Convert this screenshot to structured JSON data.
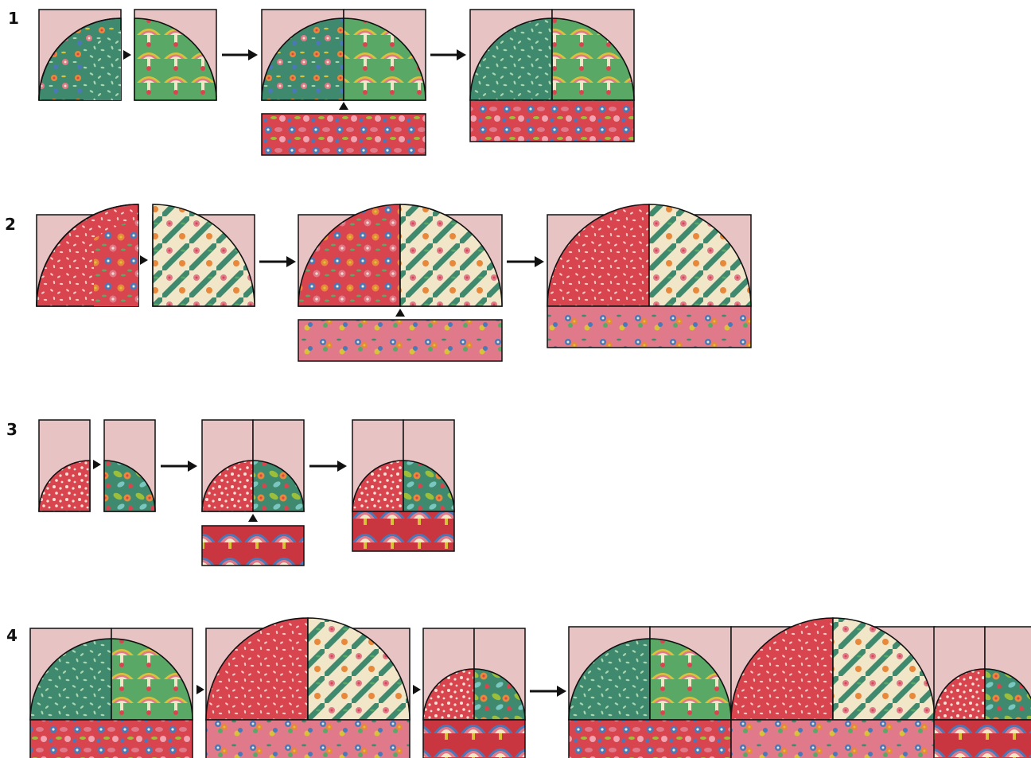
{
  "steps": [
    {
      "number": "1"
    },
    {
      "number": "2"
    },
    {
      "number": "3"
    },
    {
      "number": "4"
    }
  ],
  "colors": {
    "background_pink": "#e8c3c4",
    "outline": "#111111",
    "arrow": "#111111",
    "fabric_teal": "#3f8a6e",
    "fabric_green": "#5aa866",
    "fabric_red": "#d9454f",
    "fabric_cream": "#f1e6c8",
    "fabric_pink": "#e07a8a",
    "fabric_blue": "#4a78b8",
    "fabric_orange": "#e8883a",
    "fabric_yellow": "#d9c23a"
  },
  "icons": [
    "arrow-right-icon",
    "triangle-pointer-icon"
  ]
}
